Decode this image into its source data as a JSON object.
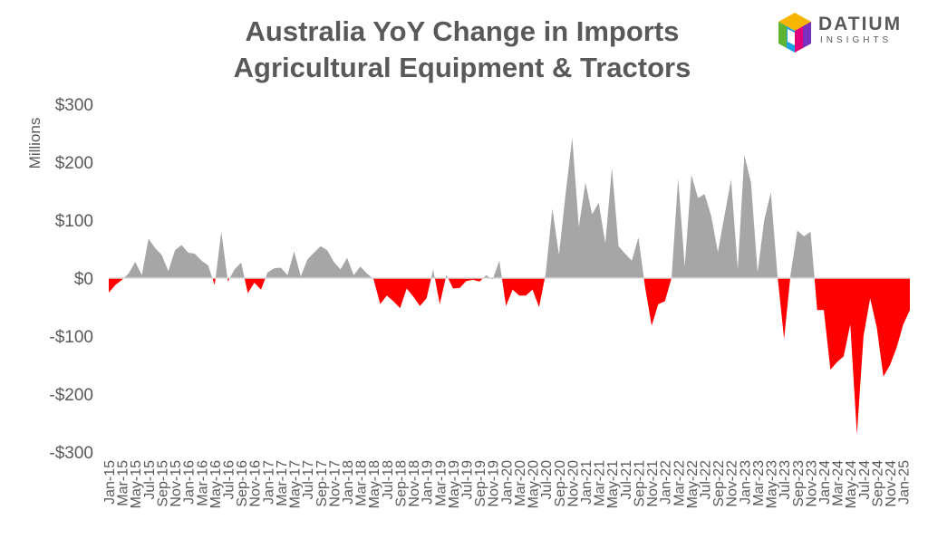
{
  "title": {
    "line1": "Australia YoY Change in Imports",
    "line2": "Agricultural Equipment & Tractors"
  },
  "logo": {
    "name": "DATIUM",
    "tagline": "INSIGHTS"
  },
  "colors": {
    "positive": "#A6A6A6",
    "negative": "#FF0000",
    "text": "#595959",
    "axis": "#D9D9D9"
  },
  "chart_data": {
    "type": "area",
    "ylabel": "Millions",
    "ylim": [
      -300,
      300
    ],
    "yticks": [
      300,
      200,
      100,
      0,
      -100,
      -200,
      -300
    ],
    "ytick_labels": [
      "$300",
      "$200",
      "$100",
      "$0",
      "-$100",
      "-$200",
      "-$300"
    ],
    "x": [
      "Jan-15",
      "Feb-15",
      "Mar-15",
      "Apr-15",
      "May-15",
      "Jun-15",
      "Jul-15",
      "Aug-15",
      "Sep-15",
      "Oct-15",
      "Nov-15",
      "Dec-15",
      "Jan-16",
      "Feb-16",
      "Mar-16",
      "Apr-16",
      "May-16",
      "Jun-16",
      "Jul-16",
      "Aug-16",
      "Sep-16",
      "Oct-16",
      "Nov-16",
      "Dec-16",
      "Jan-17",
      "Feb-17",
      "Mar-17",
      "Apr-17",
      "May-17",
      "Jun-17",
      "Jul-17",
      "Aug-17",
      "Sep-17",
      "Oct-17",
      "Nov-17",
      "Dec-17",
      "Jan-18",
      "Feb-18",
      "Mar-18",
      "Apr-18",
      "May-18",
      "Jun-18",
      "Jul-18",
      "Aug-18",
      "Sep-18",
      "Oct-18",
      "Nov-18",
      "Dec-18",
      "Jan-19",
      "Feb-19",
      "Mar-19",
      "Apr-19",
      "May-19",
      "Jun-19",
      "Jul-19",
      "Aug-19",
      "Sep-19",
      "Oct-19",
      "Nov-19",
      "Dec-19",
      "Jan-20",
      "Feb-20",
      "Mar-20",
      "Apr-20",
      "May-20",
      "Jun-20",
      "Jul-20",
      "Aug-20",
      "Sep-20",
      "Oct-20",
      "Nov-20",
      "Dec-20",
      "Jan-21",
      "Feb-21",
      "Mar-21",
      "Apr-21",
      "May-21",
      "Jun-21",
      "Jul-21",
      "Aug-21",
      "Sep-21",
      "Oct-21",
      "Nov-21",
      "Dec-21",
      "Jan-22",
      "Feb-22",
      "Mar-22",
      "Apr-22",
      "May-22",
      "Jun-22",
      "Jul-22",
      "Aug-22",
      "Sep-22",
      "Oct-22",
      "Nov-22",
      "Dec-22",
      "Jan-23",
      "Feb-23",
      "Mar-23",
      "Apr-23",
      "May-23",
      "Jun-23",
      "Jul-23",
      "Aug-23",
      "Sep-23",
      "Oct-23",
      "Nov-23",
      "Dec-23",
      "Jan-24",
      "Feb-24",
      "Mar-24",
      "Apr-24",
      "May-24",
      "Jun-24",
      "Jul-24",
      "Aug-24",
      "Sep-24",
      "Oct-24",
      "Nov-24",
      "Dec-24",
      "Jan-25",
      "Feb-25"
    ],
    "xtick_labels": [
      "Jan-15",
      "Mar-15",
      "May-15",
      "Jul-15",
      "Sep-15",
      "Nov-15",
      "Jan-16",
      "Mar-16",
      "May-16",
      "Jul-16",
      "Sep-16",
      "Nov-16",
      "Jan-17",
      "Mar-17",
      "May-17",
      "Jul-17",
      "Sep-17",
      "Nov-17",
      "Jan-18",
      "Mar-18",
      "May-18",
      "Jul-18",
      "Sep-18",
      "Nov-18",
      "Jan-19",
      "Mar-19",
      "May-19",
      "Jul-19",
      "Sep-19",
      "Nov-19",
      "Jan-20",
      "Mar-20",
      "May-20",
      "Jul-20",
      "Sep-20",
      "Nov-20",
      "Jan-21",
      "Mar-21",
      "May-21",
      "Jul-21",
      "Sep-21",
      "Nov-21",
      "Jan-22",
      "Mar-22",
      "May-22",
      "Jul-22",
      "Sep-22",
      "Nov-22",
      "Jan-23",
      "Mar-23",
      "May-23",
      "Jul-23",
      "Sep-23",
      "Nov-23",
      "Jan-24",
      "Mar-24",
      "May-24",
      "Jul-24",
      "Sep-24",
      "Nov-24",
      "Jan-25"
    ],
    "values": [
      -25,
      -12,
      -3,
      8,
      28,
      5,
      68,
      52,
      40,
      12,
      48,
      57,
      44,
      42,
      30,
      22,
      -12,
      80,
      -6,
      15,
      27,
      -26,
      -8,
      -20,
      10,
      17,
      18,
      5,
      46,
      3,
      32,
      44,
      55,
      48,
      28,
      15,
      35,
      5,
      20,
      8,
      -2,
      -45,
      -30,
      -40,
      -52,
      -18,
      -32,
      -48,
      -35,
      15,
      -45,
      6,
      -18,
      -17,
      -5,
      -3,
      -6,
      5,
      -2,
      30,
      -48,
      -20,
      -30,
      -30,
      -20,
      -50,
      8,
      120,
      40,
      145,
      242,
      88,
      165,
      110,
      130,
      60,
      190,
      55,
      42,
      30,
      70,
      -15,
      -82,
      -45,
      -40,
      0,
      172,
      20,
      178,
      138,
      145,
      107,
      45,
      108,
      170,
      15,
      212,
      165,
      10,
      100,
      148,
      5,
      -105,
      8,
      82,
      72,
      80,
      -55,
      -55,
      -158,
      -145,
      -135,
      -80,
      -270,
      -100,
      -35,
      -85,
      -170,
      -150,
      -120,
      -80,
      -55
    ]
  }
}
